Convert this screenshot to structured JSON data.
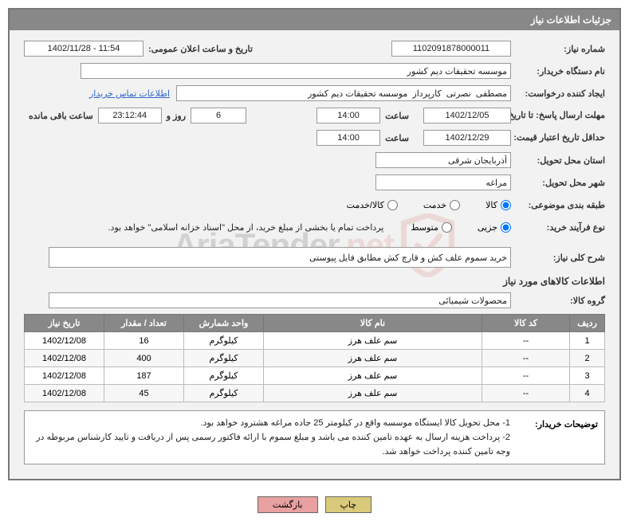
{
  "panel_title": "جزئیات اطلاعات نیاز",
  "labels": {
    "need_no": "شماره نیاز:",
    "announce_dt": "تاریخ و ساعت اعلان عمومی:",
    "buyer_org": "نام دستگاه خریدار:",
    "requester": "ایجاد کننده درخواست:",
    "contact_link": "اطلاعات تماس خریدار",
    "deadline": "مهلت ارسال پاسخ: تا تاریخ:",
    "hour": "ساعت",
    "days_and": "روز و",
    "remaining": "ساعت باقی مانده",
    "validity": "حداقل تاریخ اعتبار قیمت: تا تاریخ:",
    "province": "استان محل تحویل:",
    "city": "شهر محل تحویل:",
    "category": "طبقه بندی موضوعی:",
    "process": "نوع فرآیند خرید:",
    "process_note": "پرداخت تمام یا بخشی از مبلغ خرید، از محل \"اسناد خزانه اسلامی\" خواهد بود.",
    "description": "شرح کلی نیاز:",
    "items_title": "اطلاعات کالاهای مورد نیاز",
    "goods_group": "گروه کالا:",
    "buyer_notes": "توضیحات خریدار:",
    "print": "چاپ",
    "back": "بازگشت"
  },
  "fields": {
    "need_no": "1102091878000011",
    "announce_dt": "1402/11/28 - 11:54",
    "buyer_org": "موسسه تحقیقات دیم کشور",
    "requester": "مصطفی  نصرتی  کارپرداز  موسسه تحقیقات دیم کشور",
    "deadline_date": "1402/12/05",
    "deadline_time": "14:00",
    "remaining_days": "6",
    "remaining_time": "23:12:44",
    "validity_date": "1402/12/29",
    "validity_time": "14:00",
    "province": "آذربایجان شرقی",
    "city": "مراغه",
    "description": "خرید سموم علف کش و قارچ کش مطابق فایل پیوستی",
    "goods_group": "محصولات شیمیائی"
  },
  "radios": {
    "cat_goods": "کالا",
    "cat_service": "خدمت",
    "cat_both": "کالا/خدمت",
    "proc_partial": "جزیی",
    "proc_medium": "متوسط"
  },
  "radio_state": {
    "category": "goods",
    "process": "partial"
  },
  "table": {
    "headers": {
      "row": "ردیف",
      "code": "کد کالا",
      "name": "نام کالا",
      "unit": "واحد شمارش",
      "qty": "تعداد / مقدار",
      "need_date": "تاریخ نیاز"
    },
    "rows": [
      {
        "row": "1",
        "code": "--",
        "name": "سم علف هرز",
        "unit": "کیلوگرم",
        "qty": "16",
        "date": "1402/12/08"
      },
      {
        "row": "2",
        "code": "--",
        "name": "سم علف هرز",
        "unit": "کیلوگرم",
        "qty": "400",
        "date": "1402/12/08"
      },
      {
        "row": "3",
        "code": "--",
        "name": "سم علف هرز",
        "unit": "کیلوگرم",
        "qty": "187",
        "date": "1402/12/08"
      },
      {
        "row": "4",
        "code": "--",
        "name": "سم علف هرز",
        "unit": "کیلوگرم",
        "qty": "45",
        "date": "1402/12/08"
      }
    ]
  },
  "notes": {
    "line1": "1- محل تحویل کالا ایستگاه موسسه واقع در کیلومتر 25 جاده مراغه هشترود خواهد بود.",
    "line2": "2- پرداخت هزینه ارسال به عهده تامین کننده می باشد و مبلغ سموم با ارائه فاکتور رسمی پس از دریافت و تایید کارشناس مربوطه در وجه تامین کننده پرداخت خواهد شد."
  },
  "watermark": {
    "text1": "AriaTender",
    "text2": ".net"
  },
  "colors": {
    "header_bg": "#888888",
    "panel_bg": "#f2f2f2",
    "border": "#777777",
    "link": "#3366cc",
    "btn_print": "#d9c97a",
    "btn_back": "#e8a0a0",
    "wm_red": "#c0392b"
  }
}
